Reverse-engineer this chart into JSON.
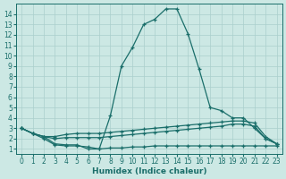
{
  "xlabel": "Humidex (Indice chaleur)",
  "background_color": "#cce8e4",
  "grid_color": "#aacfcc",
  "line_color": "#1a6e6a",
  "x_values": [
    0,
    1,
    2,
    3,
    4,
    5,
    6,
    7,
    8,
    9,
    10,
    11,
    12,
    13,
    14,
    15,
    16,
    17,
    18,
    19,
    20,
    21,
    22,
    23
  ],
  "series_main": [
    3.0,
    2.5,
    2.2,
    1.5,
    1.4,
    1.4,
    1.0,
    1.0,
    4.2,
    9.0,
    10.8,
    13.0,
    13.5,
    14.5,
    14.5,
    12.1,
    8.7,
    5.0,
    4.7,
    4.0,
    4.0,
    3.0,
    2.0,
    1.5
  ],
  "series_flat1": [
    3.0,
    2.5,
    2.2,
    2.2,
    2.4,
    2.5,
    2.5,
    2.5,
    2.6,
    2.7,
    2.8,
    2.9,
    3.0,
    3.1,
    3.2,
    3.3,
    3.4,
    3.5,
    3.6,
    3.7,
    3.7,
    3.5,
    2.2,
    1.5
  ],
  "series_flat2": [
    3.0,
    2.5,
    2.2,
    2.0,
    2.1,
    2.1,
    2.1,
    2.1,
    2.2,
    2.3,
    2.4,
    2.5,
    2.6,
    2.7,
    2.8,
    2.9,
    3.0,
    3.1,
    3.2,
    3.4,
    3.4,
    3.2,
    2.0,
    1.5
  ],
  "series_low": [
    3.0,
    2.5,
    2.0,
    1.4,
    1.3,
    1.3,
    1.2,
    1.0,
    1.1,
    1.1,
    1.2,
    1.2,
    1.3,
    1.3,
    1.3,
    1.3,
    1.3,
    1.3,
    1.3,
    1.3,
    1.3,
    1.3,
    1.3,
    1.3
  ],
  "xlim": [
    -0.5,
    23.5
  ],
  "ylim": [
    0.5,
    15.0
  ],
  "yticks": [
    1,
    2,
    3,
    4,
    5,
    6,
    7,
    8,
    9,
    10,
    11,
    12,
    13,
    14
  ],
  "xticks": [
    0,
    1,
    2,
    3,
    4,
    5,
    6,
    7,
    8,
    9,
    10,
    11,
    12,
    13,
    14,
    15,
    16,
    17,
    18,
    19,
    20,
    21,
    22,
    23
  ],
  "tick_fontsize": 5.5,
  "xlabel_fontsize": 6.5
}
